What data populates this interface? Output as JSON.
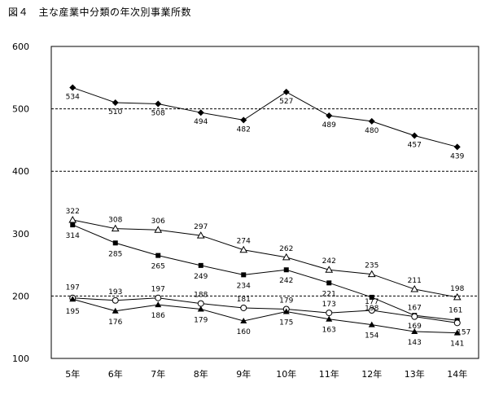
{
  "chart_data": {
    "type": "line",
    "title": "図４　主な産業中分類の年次別事業所数",
    "categories": [
      "5年",
      "6年",
      "7年",
      "8年",
      "9年",
      "10年",
      "11年",
      "12年",
      "13年",
      "14年"
    ],
    "y_ticks": [
      "100",
      "200",
      "300",
      "400",
      "500",
      "600"
    ],
    "ylim": [
      100,
      600
    ],
    "grid": "dashed horizontal lines at 200, 400, 500",
    "legend": "none",
    "series": [
      {
        "marker": "filled-diamond",
        "values": [
          534,
          510,
          508,
          494,
          482,
          527,
          489,
          480,
          457,
          439
        ]
      },
      {
        "marker": "open-triangle",
        "values": [
          322,
          308,
          306,
          297,
          274,
          262,
          242,
          235,
          211,
          198
        ]
      },
      {
        "marker": "filled-square",
        "values": [
          314,
          285,
          265,
          249,
          234,
          242,
          221,
          198,
          169,
          161
        ]
      },
      {
        "marker": "open-circle",
        "values": [
          197,
          193,
          197,
          188,
          181,
          179,
          173,
          177,
          167,
          157
        ]
      },
      {
        "marker": "filled-triangle",
        "values": [
          195,
          176,
          186,
          179,
          160,
          175,
          163,
          154,
          143,
          141
        ]
      }
    ]
  }
}
